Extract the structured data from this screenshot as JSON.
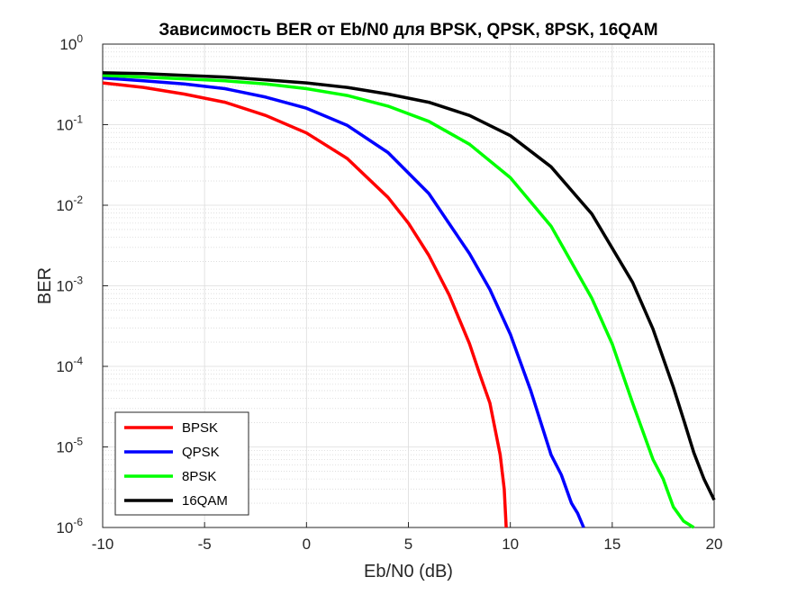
{
  "chart_data": {
    "type": "line",
    "title": "Зависимость BER от Eb/N0 для BPSK, QPSK, 8PSK, 16QAM",
    "xlabel": "Eb/N0 (dB)",
    "ylabel": "BER",
    "xlim": [
      -10,
      20
    ],
    "ylim": [
      1e-06,
      1
    ],
    "yscale": "log",
    "grid": true,
    "minor_grid": true,
    "legend_position": "bottom-left",
    "x_ticks": [
      "-10",
      "-5",
      "0",
      "5",
      "10",
      "15",
      "20"
    ],
    "y_ticks": [
      {
        "base": "10",
        "exp": "0"
      },
      {
        "base": "10",
        "exp": "-1"
      },
      {
        "base": "10",
        "exp": "-2"
      },
      {
        "base": "10",
        "exp": "-3"
      },
      {
        "base": "10",
        "exp": "-4"
      },
      {
        "base": "10",
        "exp": "-5"
      },
      {
        "base": "10",
        "exp": "-6"
      }
    ],
    "series": [
      {
        "name": "BPSK",
        "color": "#ff0000",
        "x": [
          -10,
          -8,
          -6,
          -4,
          -2,
          0,
          2,
          4,
          5,
          6,
          7,
          8,
          8.5,
          9,
          9.5,
          9.7,
          9.8
        ],
        "y": [
          0.33,
          0.29,
          0.24,
          0.19,
          0.13,
          0.079,
          0.038,
          0.0125,
          0.006,
          0.0024,
          0.00077,
          0.00019,
          8e-05,
          3.5e-05,
          8e-06,
          3e-06,
          1e-06
        ]
      },
      {
        "name": "QPSK",
        "color": "#0000ff",
        "x": [
          -10,
          -8,
          -6,
          -4,
          -2,
          0,
          2,
          4,
          6,
          8,
          9,
          10,
          11,
          12,
          12.5,
          13,
          13.3,
          13.6
        ],
        "y": [
          0.38,
          0.35,
          0.32,
          0.28,
          0.22,
          0.16,
          0.098,
          0.045,
          0.014,
          0.0025,
          0.0009,
          0.00025,
          5e-05,
          8e-06,
          4.5e-06,
          2e-06,
          1.5e-06,
          1e-06
        ]
      },
      {
        "name": "8PSK",
        "color": "#00ff00",
        "x": [
          -10,
          -8,
          -6,
          -4,
          -2,
          0,
          2,
          4,
          6,
          8,
          10,
          12,
          14,
          15,
          16,
          17,
          17.5,
          18,
          18.5,
          19
        ],
        "y": [
          0.41,
          0.39,
          0.37,
          0.35,
          0.32,
          0.28,
          0.23,
          0.17,
          0.11,
          0.057,
          0.022,
          0.0055,
          0.0007,
          0.00019,
          3.5e-05,
          7e-06,
          4e-06,
          1.8e-06,
          1.2e-06,
          1e-06
        ]
      },
      {
        "name": "16QAM",
        "color": "#000000",
        "x": [
          -10,
          -8,
          -6,
          -4,
          -2,
          0,
          2,
          4,
          6,
          8,
          10,
          12,
          14,
          16,
          17,
          18,
          18.5,
          19,
          19.5,
          20
        ],
        "y": [
          0.44,
          0.43,
          0.41,
          0.39,
          0.36,
          0.33,
          0.29,
          0.24,
          0.19,
          0.13,
          0.073,
          0.03,
          0.0078,
          0.0011,
          0.00029,
          5.5e-05,
          2.2e-05,
          8.5e-06,
          4e-06,
          2.2e-06
        ]
      }
    ]
  }
}
